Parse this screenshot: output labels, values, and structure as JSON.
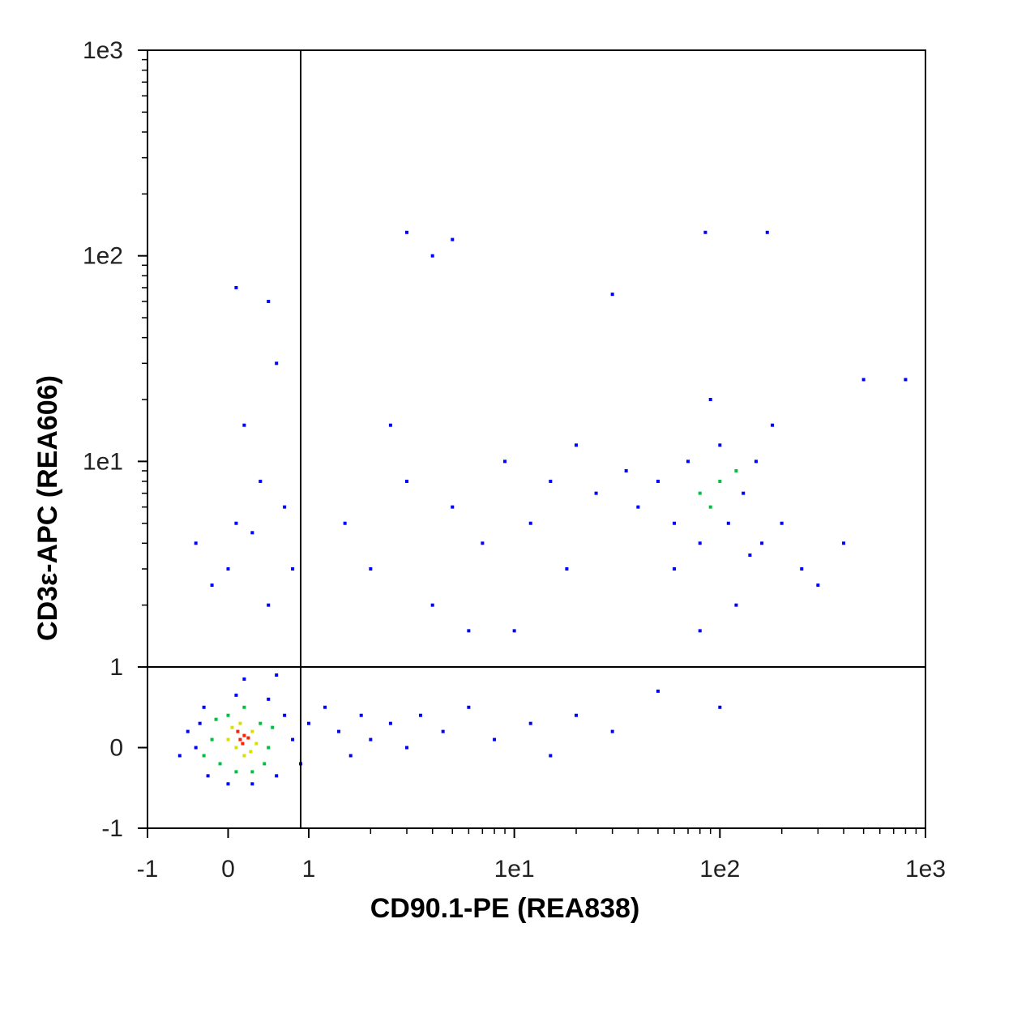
{
  "chart_data": {
    "type": "scatter",
    "xlabel": "CD90.1-PE (REA838)",
    "ylabel": "CD3ε-APC (REA606)",
    "xscale": "lin-log",
    "yscale": "lin-log",
    "linthresh": 1,
    "xlim": [
      -1,
      1000
    ],
    "ylim": [
      -1,
      1000
    ],
    "xticks": [
      -1,
      0,
      1,
      {
        "value": 10,
        "label": "1e1"
      },
      {
        "value": 100,
        "label": "1e2"
      },
      {
        "value": 1000,
        "label": "1e3"
      }
    ],
    "yticks": [
      -1,
      0,
      1,
      {
        "value": 10,
        "label": "1e1"
      },
      {
        "value": 100,
        "label": "1e2"
      },
      {
        "value": 1000,
        "label": "1e3"
      }
    ],
    "xminorticks": [
      2,
      3,
      4,
      5,
      6,
      7,
      8,
      9,
      20,
      30,
      40,
      50,
      60,
      70,
      80,
      90,
      200,
      300,
      400,
      500,
      600,
      700,
      800,
      900
    ],
    "yminorticks": [
      2,
      3,
      4,
      5,
      6,
      7,
      8,
      9,
      20,
      30,
      40,
      50,
      60,
      70,
      80,
      90,
      200,
      300,
      400,
      500,
      600,
      700,
      800,
      900
    ],
    "gates": {
      "x": 0.9,
      "y": 1
    },
    "series": [
      {
        "color": "#0000ff",
        "x": [
          -0.4,
          -0.35,
          -0.25,
          0.0,
          0.3,
          0.6,
          0.7,
          0.5,
          0.1,
          -0.3,
          0.8,
          0.9,
          1.0,
          1.2,
          1.4,
          1.6,
          1.8,
          2.0,
          2.5,
          3,
          3.5,
          4.5,
          6,
          8,
          12,
          15,
          20,
          30,
          -0.6,
          -0.5,
          0.2,
          0.6,
          0.0,
          0.3,
          0.1,
          0.5,
          0.7,
          -0.2,
          0.4,
          0.2,
          0.6,
          0.1,
          0.5,
          0.8,
          -0.4,
          1.5,
          2,
          3,
          4,
          5,
          7,
          9,
          12,
          15,
          18,
          20,
          25,
          2.5,
          6,
          10,
          3,
          4,
          30,
          5,
          50,
          60,
          70,
          80,
          100,
          110,
          130,
          150,
          160,
          40,
          35,
          200,
          250,
          300,
          180,
          90,
          60,
          140,
          120,
          80,
          100,
          400,
          500,
          800,
          85,
          170,
          50
        ],
        "y": [
          0.0,
          0.3,
          -0.35,
          -0.45,
          -0.45,
          -0.35,
          0.4,
          0.6,
          0.65,
          0.5,
          0.1,
          -0.2,
          0.3,
          0.5,
          0.2,
          -0.1,
          0.4,
          0.1,
          0.3,
          0.0,
          0.4,
          0.2,
          0.5,
          0.1,
          0.3,
          -0.1,
          0.4,
          0.2,
          -0.1,
          0.2,
          0.85,
          0.9,
          3,
          4.5,
          5,
          2,
          6,
          2.5,
          8,
          15,
          30,
          70,
          60,
          3,
          4,
          5,
          3,
          8,
          2,
          6,
          4,
          10,
          5,
          8,
          3,
          12,
          7,
          15,
          1.5,
          1.5,
          130,
          100,
          65,
          120,
          8,
          5,
          10,
          4,
          12,
          5,
          7,
          10,
          4,
          6,
          9,
          5,
          3,
          2.5,
          15,
          20,
          3,
          3.5,
          2,
          1.5,
          0.5,
          4,
          25,
          25,
          130,
          130,
          0.7
        ]
      },
      {
        "color": "#00c040",
        "x": [
          -0.2,
          -0.1,
          0.0,
          0.4,
          0.5,
          0.45,
          0.2,
          -0.15,
          0.1,
          0.55,
          -0.3,
          0.3,
          100,
          80,
          120,
          90
        ],
        "y": [
          0.1,
          -0.2,
          0.4,
          0.3,
          0.0,
          -0.2,
          0.5,
          0.35,
          -0.3,
          0.25,
          -0.1,
          -0.3,
          8,
          7,
          9,
          6
        ]
      },
      {
        "color": "#d8e000",
        "x": [
          0.1,
          0.3,
          0.2,
          0.05,
          0.35,
          0.15,
          0.28,
          0.0
        ],
        "y": [
          0.0,
          0.2,
          -0.1,
          0.25,
          0.05,
          0.3,
          -0.05,
          0.1
        ]
      },
      {
        "color": "#ff2000",
        "x": [
          0.15,
          0.2,
          0.18,
          0.25,
          0.12
        ],
        "y": [
          0.1,
          0.15,
          0.05,
          0.12,
          0.2
        ]
      }
    ]
  }
}
